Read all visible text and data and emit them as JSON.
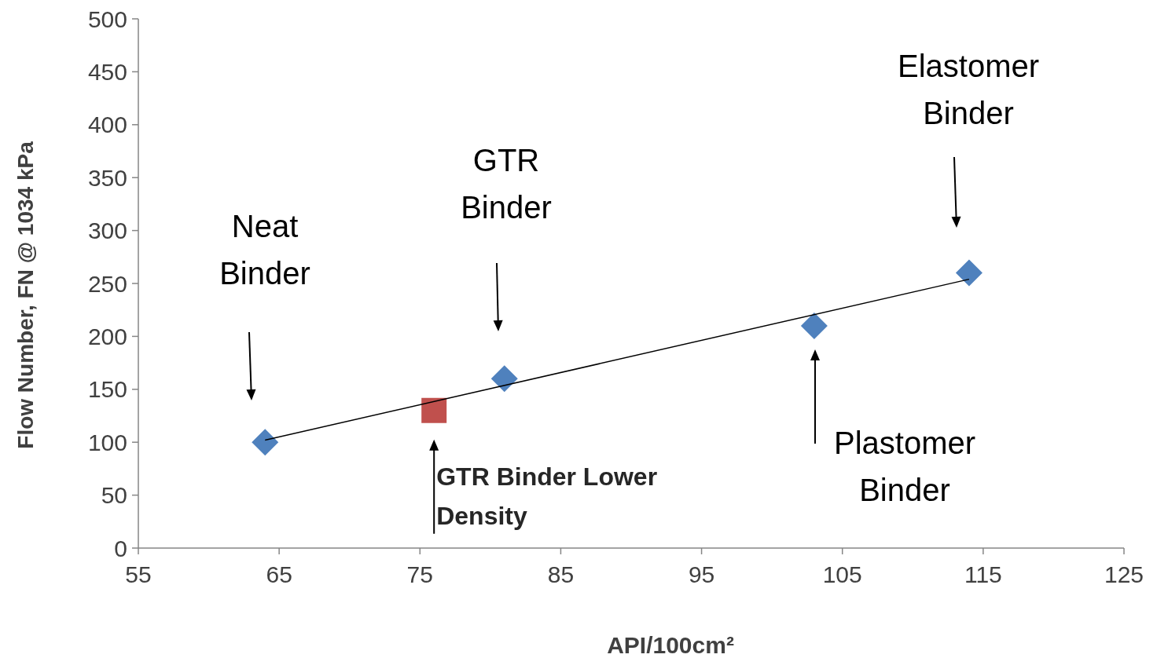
{
  "chart_data": {
    "type": "scatter",
    "xlabel": "API/100cm²",
    "ylabel": "Flow Number, FN @ 1034 kPa",
    "xlim": [
      55,
      125
    ],
    "xticks": [
      55,
      65,
      75,
      85,
      95,
      105,
      115,
      125
    ],
    "ylim": [
      0,
      500
    ],
    "yticks": [
      0,
      50,
      100,
      150,
      200,
      250,
      300,
      350,
      400,
      450,
      500
    ],
    "series": [
      {
        "marker": "diamond",
        "color": "#4f81bd",
        "x": [
          64,
          81,
          103,
          114
        ],
        "values": [
          100,
          160,
          210,
          260
        ]
      },
      {
        "marker": "square",
        "color": "#c0504d",
        "x": [
          76
        ],
        "values": [
          130
        ]
      },
      {
        "type": "line",
        "marker": "none",
        "color": "#000000",
        "x": [
          64,
          114
        ],
        "values": [
          102,
          254
        ]
      }
    ],
    "annotations": [
      "Neat Binder",
      "GTR Binder",
      "Elastomer Binder",
      "Plastomer Binder",
      {
        "text": "GTR Binder Lower Density",
        "x": 76,
        "y": 130
      }
    ]
  }
}
